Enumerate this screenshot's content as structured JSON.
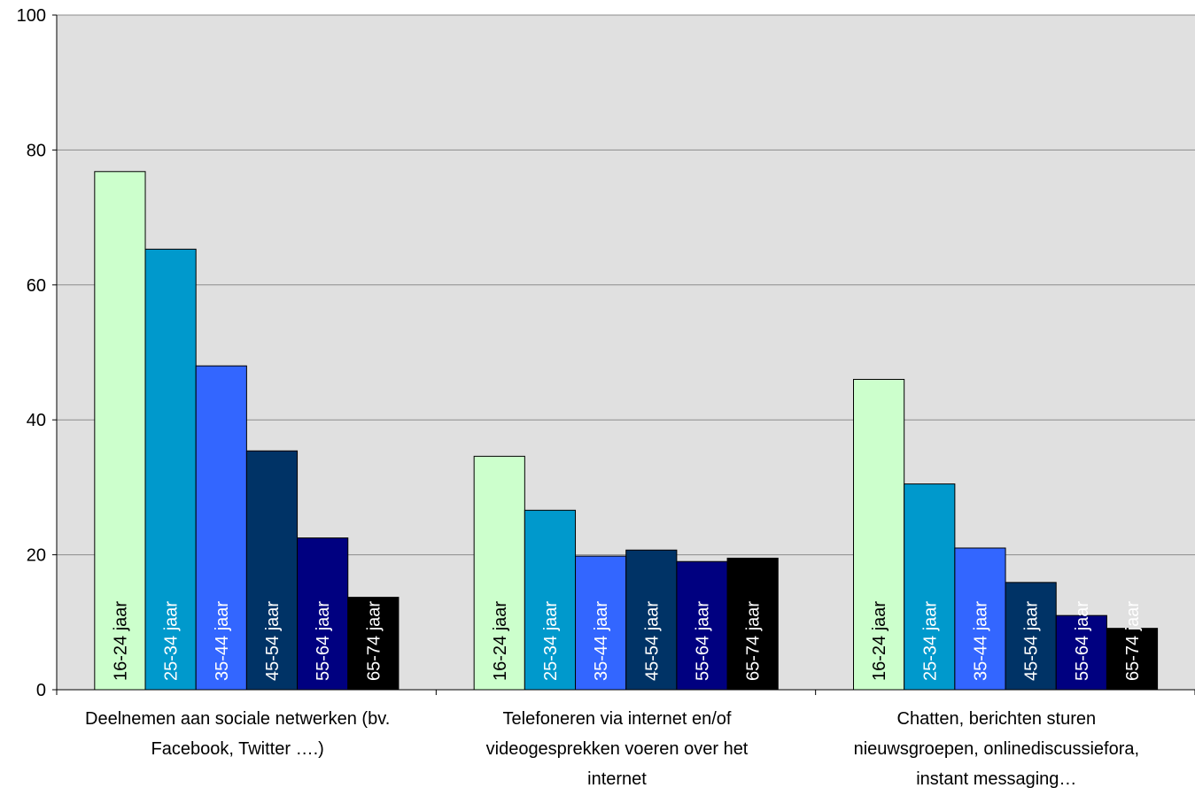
{
  "chart_data": {
    "type": "bar",
    "title": "",
    "xlabel": "",
    "ylabel": "",
    "ylim": [
      0,
      100
    ],
    "yticks": [
      "0",
      "20",
      "40",
      "60",
      "80",
      "100"
    ],
    "grid": true,
    "legend": "none",
    "plot_background": "#e0e0e0",
    "categories": [
      "Deelnemen aan sociale netwerken (bv. Facebook, Twitter ….)",
      "Telefoneren via internet en/of videogesprekken voeren over het internet",
      "Chatten, berichten sturen nieuwsgroepen, onlinediscussiefora, instant messaging…"
    ],
    "category_label_lines": [
      [
        "Deelnemen aan sociale netwerken (bv.",
        "Facebook, Twitter ….)"
      ],
      [
        "Telefoneren via internet en/of",
        "videogesprekken voeren over het",
        "internet"
      ],
      [
        "Chatten, berichten sturen",
        "nieuwsgroepen, onlinediscussiefora,",
        "instant messaging…"
      ]
    ],
    "series": [
      {
        "name": "16-24 jaar",
        "color": "#ccffcc",
        "label_color": "#000000",
        "values": [
          76.8,
          34.6,
          46.0
        ]
      },
      {
        "name": "25-34 jaar",
        "color": "#0099cc",
        "label_color": "#ffffff",
        "values": [
          65.3,
          26.6,
          30.5
        ]
      },
      {
        "name": "35-44 jaar",
        "color": "#3366ff",
        "label_color": "#ffffff",
        "values": [
          48.0,
          19.8,
          21.0
        ]
      },
      {
        "name": "45-54 jaar",
        "color": "#003366",
        "label_color": "#ffffff",
        "values": [
          35.4,
          20.7,
          15.9
        ]
      },
      {
        "name": "55-64 jaar",
        "color": "#000080",
        "label_color": "#ffffff",
        "values": [
          22.5,
          19.0,
          11.0
        ]
      },
      {
        "name": "65-74 jaar",
        "color": "#000000",
        "label_color": "#ffffff",
        "values": [
          13.7,
          19.5,
          9.1
        ]
      }
    ]
  }
}
